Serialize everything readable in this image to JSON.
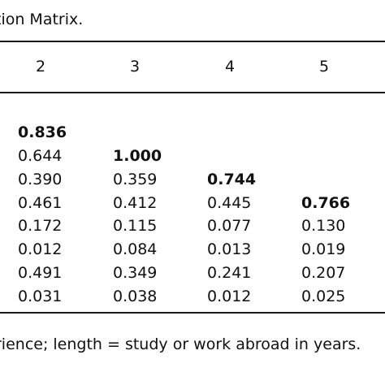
{
  "caption": "tion Matrix.",
  "columns": [
    "2",
    "3",
    "4",
    "5"
  ],
  "rows": [
    [
      "0.836",
      "",
      "",
      ""
    ],
    [
      "0.644",
      "1.000",
      "",
      ""
    ],
    [
      "0.390",
      "0.359",
      "0.744",
      ""
    ],
    [
      "0.461",
      "0.412",
      "0.445",
      "0.766"
    ],
    [
      "0.172",
      "0.115",
      "0.077",
      "0.130"
    ],
    [
      "0.012",
      "0.084",
      "0.013",
      "0.019"
    ],
    [
      "0.491",
      "0.349",
      "0.241",
      "0.207"
    ],
    [
      "0.031",
      "0.038",
      "0.012",
      "0.025"
    ]
  ],
  "bold_diagonal": [
    "0.836",
    "1.000",
    "0.744",
    "0.766"
  ],
  "note": "rience; length = study or work abroad in years."
}
